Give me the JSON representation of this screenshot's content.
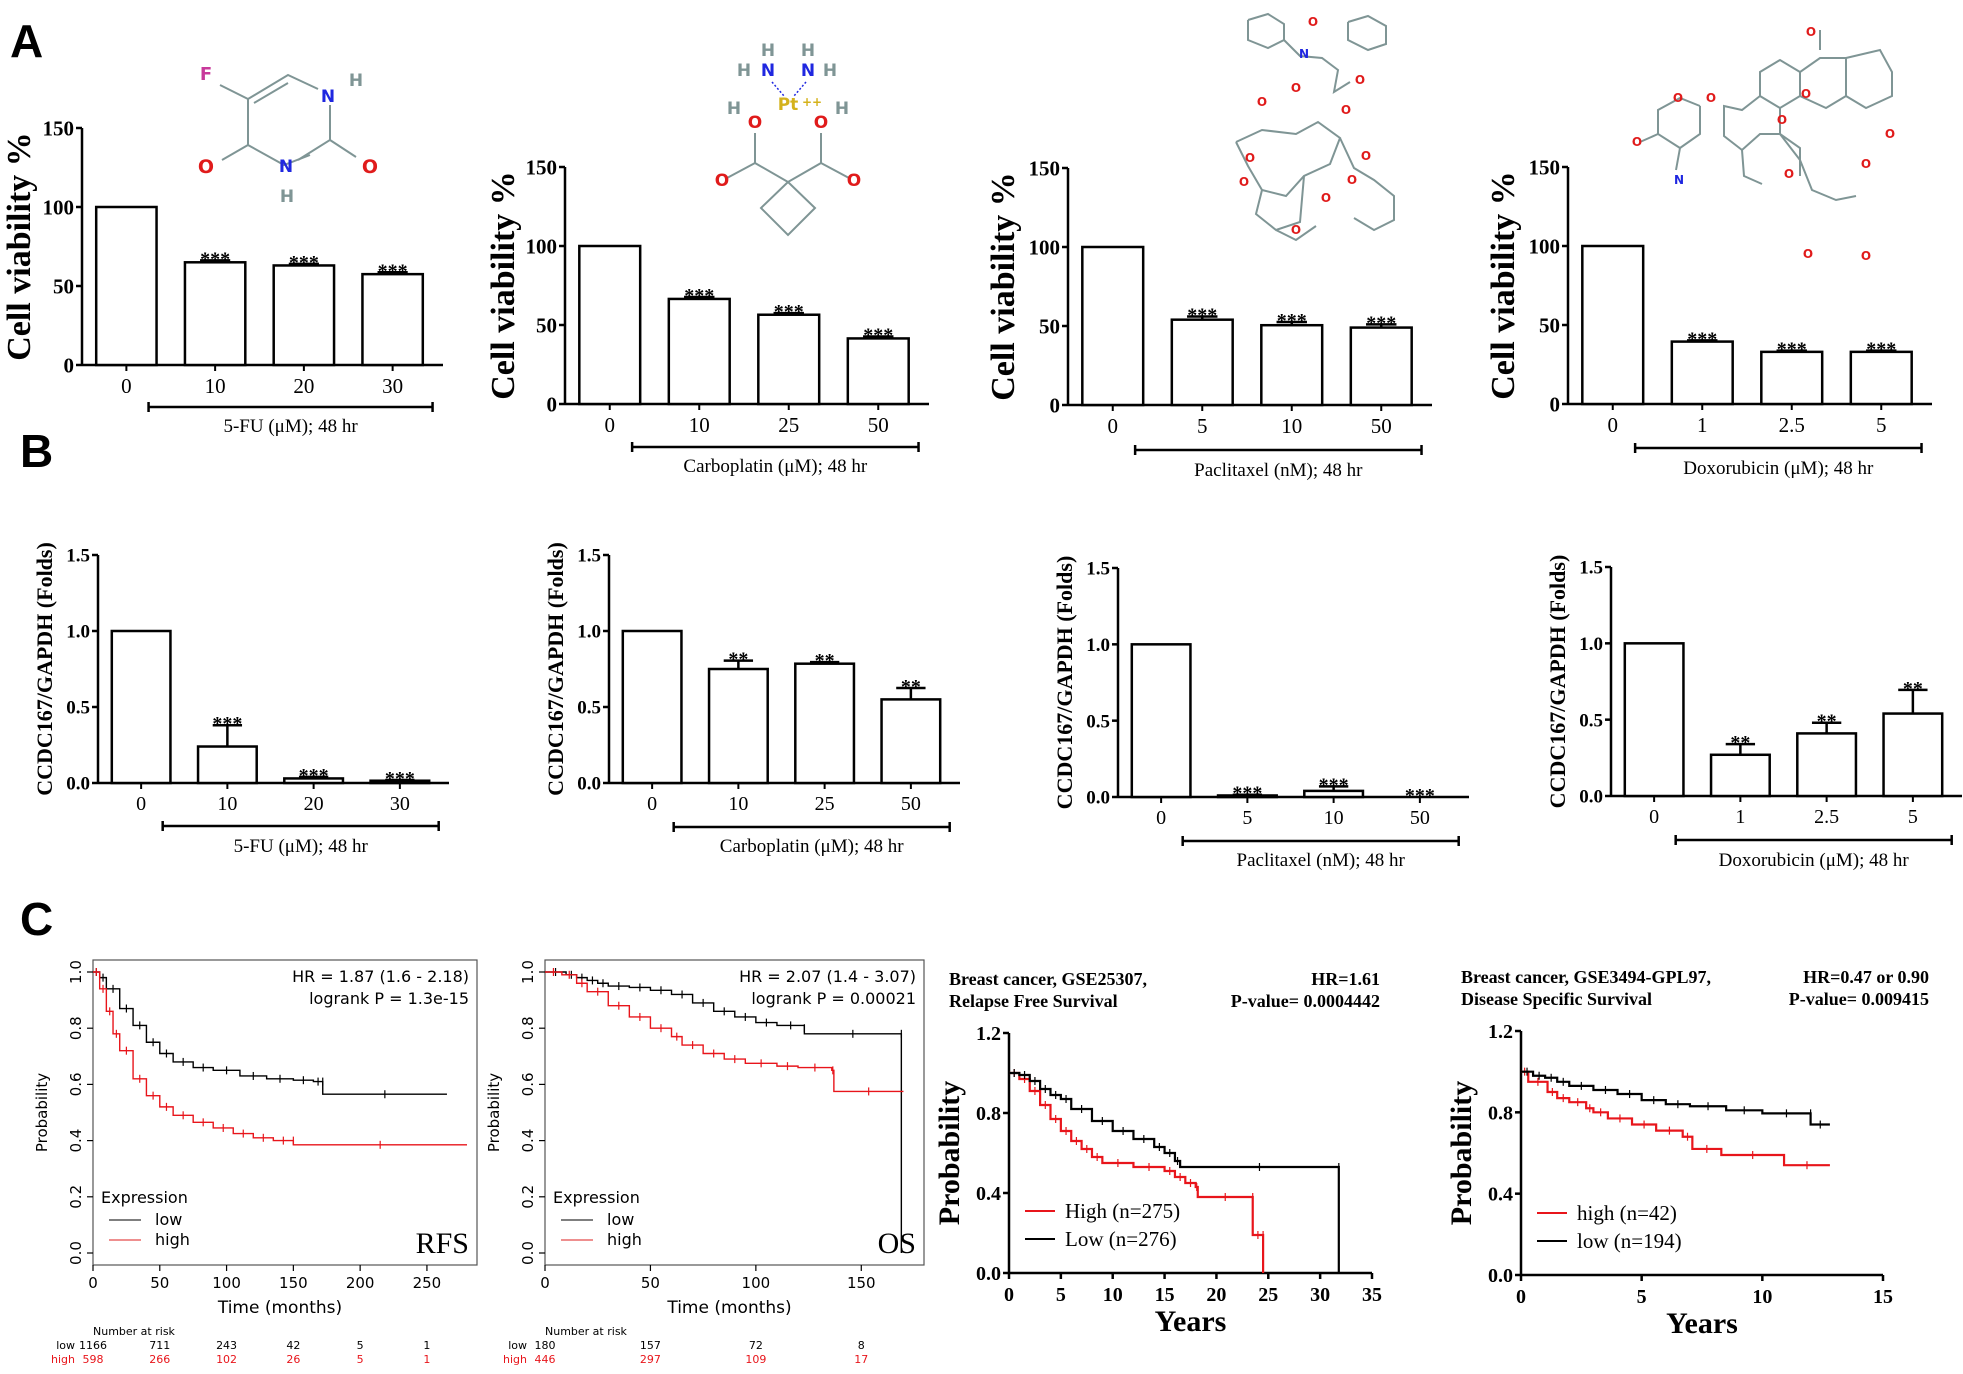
{
  "panel_labels": [
    "A",
    "B",
    "C"
  ],
  "chart_data": [
    {
      "id": "A1",
      "type": "bar",
      "panel": "A",
      "ylabel": "Cell viability %",
      "ylim": [
        0,
        150
      ],
      "yticks": [
        "0",
        "50",
        "100",
        "150"
      ],
      "categories": [
        "0",
        "10",
        "20",
        "30"
      ],
      "values": [
        100,
        65,
        63,
        57.5
      ],
      "errors": [
        0,
        1.2,
        1.0,
        1.2
      ],
      "significance": [
        "",
        "***",
        "***",
        "***"
      ],
      "group_label": "5-FU (μM); 48 hr",
      "structure": "5-fluorouracil",
      "structure_atoms": [
        "F",
        "N",
        "H",
        "N",
        "H",
        "O",
        "O"
      ]
    },
    {
      "id": "A2",
      "type": "bar",
      "panel": "A",
      "ylabel": "Cell viability %",
      "ylim": [
        0,
        150
      ],
      "yticks": [
        "0",
        "50",
        "100",
        "150"
      ],
      "categories": [
        "0",
        "10",
        "25",
        "50"
      ],
      "values": [
        100,
        66.5,
        56.5,
        41.5
      ],
      "errors": [
        0,
        1.2,
        1.0,
        1.2
      ],
      "significance": [
        "",
        "***",
        "***",
        "***"
      ],
      "group_label": "Carboplatin (μM); 48 hr",
      "structure": "carboplatin",
      "structure_atoms": [
        "H",
        "N",
        "H",
        "H",
        "N",
        "H",
        "Pt",
        "++",
        "H",
        "O",
        "O",
        "H",
        "O",
        "O"
      ]
    },
    {
      "id": "A3",
      "type": "bar",
      "panel": "A",
      "ylabel": "Cell viability %",
      "ylim": [
        0,
        150
      ],
      "yticks": [
        "0",
        "50",
        "100",
        "150"
      ],
      "categories": [
        "0",
        "5",
        "10",
        "50"
      ],
      "values": [
        100,
        54,
        50.5,
        49
      ],
      "errors": [
        0,
        2.0,
        2.0,
        2.0
      ],
      "significance": [
        "",
        "***",
        "***",
        "***"
      ],
      "group_label": "Paclitaxel (nM); 48 hr",
      "structure": "paclitaxel"
    },
    {
      "id": "A4",
      "type": "bar",
      "panel": "A",
      "ylabel": "Cell viability %",
      "ylim": [
        0,
        150
      ],
      "yticks": [
        "0",
        "50",
        "100",
        "150"
      ],
      "categories": [
        "0",
        "1",
        "2.5",
        "5"
      ],
      "values": [
        100,
        39.5,
        33,
        33
      ],
      "errors": [
        0,
        0.8,
        0.8,
        0.8
      ],
      "significance": [
        "",
        "***",
        "***",
        "***"
      ],
      "group_label": "Doxorubicin (μM); 48 hr",
      "structure": "doxorubicin"
    },
    {
      "id": "B1",
      "type": "bar",
      "panel": "B",
      "ylabel": "CCDC167/GAPDH (Folds)",
      "ylim": [
        0,
        1.5
      ],
      "yticks": [
        "0.0",
        "0.5",
        "1.0",
        "1.5"
      ],
      "categories": [
        "0",
        "10",
        "20",
        "30"
      ],
      "values": [
        1.0,
        0.24,
        0.03,
        0.015
      ],
      "errors": [
        0,
        0.14,
        0.01,
        0.005
      ],
      "significance": [
        "",
        "***",
        "***",
        "***"
      ],
      "group_label": "5-FU (μM); 48 hr"
    },
    {
      "id": "B2",
      "type": "bar",
      "panel": "B",
      "ylabel": "CCDC167/GAPDH (Folds)",
      "ylim": [
        0,
        1.5
      ],
      "yticks": [
        "0.0",
        "0.5",
        "1.0",
        "1.5"
      ],
      "categories": [
        "0",
        "10",
        "25",
        "50"
      ],
      "values": [
        1.0,
        0.75,
        0.785,
        0.55
      ],
      "errors": [
        0,
        0.055,
        0.01,
        0.075
      ],
      "significance": [
        "",
        "**",
        "**",
        "**"
      ],
      "group_label": "Carboplatin (μM); 48 hr"
    },
    {
      "id": "B3",
      "type": "bar",
      "panel": "B",
      "ylabel": "CCDC167/GAPDH (Folds)",
      "ylim": [
        0,
        1.5
      ],
      "yticks": [
        "0.0",
        "0.5",
        "1.0",
        "1.5"
      ],
      "categories": [
        "0",
        "5",
        "10",
        "50"
      ],
      "values": [
        1.0,
        0.01,
        0.04,
        0.0
      ],
      "errors": [
        0,
        0.005,
        0.03,
        0
      ],
      "significance": [
        "",
        "***",
        "***",
        "***"
      ],
      "group_label": "Paclitaxel (nM); 48 hr"
    },
    {
      "id": "B4",
      "type": "bar",
      "panel": "B",
      "ylabel": "CCDC167/GAPDH (Folds)",
      "ylim": [
        0,
        1.5
      ],
      "yticks": [
        "0.0",
        "0.5",
        "1.0",
        "1.5"
      ],
      "categories": [
        "0",
        "1",
        "2.5",
        "5"
      ],
      "values": [
        1.0,
        0.27,
        0.41,
        0.54
      ],
      "errors": [
        0,
        0.07,
        0.07,
        0.155
      ],
      "significance": [
        "",
        "**",
        "**",
        "**"
      ],
      "group_label": "Doxorubicin (μM); 48 hr"
    },
    {
      "id": "C1",
      "type": "line",
      "subtype": "kaplan-meier",
      "panel": "C",
      "xlabel": "Time (months)",
      "ylabel": "Probability",
      "xlim": [
        0,
        280
      ],
      "ylim": [
        0,
        1.0
      ],
      "xticks": [
        "0",
        "50",
        "100",
        "150",
        "200",
        "250"
      ],
      "yticks": [
        "0.0",
        "0.2",
        "0.4",
        "0.6",
        "0.8",
        "1.0"
      ],
      "annotation": [
        "HR = 1.87 (1.6 - 2.18)",
        "logrank P = 1.3e-15"
      ],
      "corner_label": "RFS",
      "legend_title": "Expression",
      "legend": [
        "low",
        "high"
      ],
      "legend_position": "bottom-left",
      "series": [
        {
          "name": "low",
          "color": "#000000",
          "x": [
            0,
            5,
            10,
            20,
            30,
            40,
            50,
            60,
            75,
            90,
            110,
            130,
            150,
            165,
            172,
            172,
            265
          ],
          "y": [
            1.0,
            0.98,
            0.94,
            0.87,
            0.81,
            0.75,
            0.71,
            0.68,
            0.66,
            0.65,
            0.63,
            0.62,
            0.615,
            0.61,
            0.61,
            0.565,
            0.565
          ]
        },
        {
          "name": "high",
          "color": "#e8151b",
          "x": [
            0,
            5,
            10,
            15,
            20,
            30,
            40,
            50,
            60,
            75,
            90,
            105,
            120,
            135,
            150,
            150,
            280
          ],
          "y": [
            1.0,
            0.94,
            0.86,
            0.78,
            0.72,
            0.62,
            0.56,
            0.52,
            0.49,
            0.465,
            0.445,
            0.425,
            0.41,
            0.4,
            0.4,
            0.385,
            0.385
          ]
        }
      ],
      "risk_table": {
        "title": "Number at risk",
        "times": [
          "0",
          "50",
          "100",
          "150",
          "200",
          "250"
        ],
        "rows": [
          {
            "label": "low",
            "values": [
              "1166",
              "711",
              "243",
              "42",
              "5",
              "1"
            ]
          },
          {
            "label": "high",
            "values": [
              "598",
              "266",
              "102",
              "26",
              "5",
              "1"
            ]
          }
        ]
      }
    },
    {
      "id": "C2",
      "type": "line",
      "subtype": "kaplan-meier",
      "panel": "C",
      "xlabel": "Time (months)",
      "ylabel": "Probability",
      "xlim": [
        0,
        175
      ],
      "ylim": [
        0,
        1.0
      ],
      "xticks": [
        "0",
        "50",
        "100",
        "150"
      ],
      "yticks": [
        "0.0",
        "0.2",
        "0.4",
        "0.6",
        "0.8",
        "1.0"
      ],
      "annotation": [
        "HR = 2.07 (1.4 - 3.07)",
        "logrank P = 0.00021"
      ],
      "corner_label": "OS",
      "legend_title": "Expression",
      "legend": [
        "low",
        "high"
      ],
      "legend_position": "bottom-left",
      "series": [
        {
          "name": "low",
          "color": "#000000",
          "x": [
            0,
            10,
            15,
            20,
            25,
            30,
            40,
            50,
            60,
            70,
            80,
            90,
            100,
            110,
            123,
            123,
            169,
            169
          ],
          "y": [
            1.0,
            0.99,
            0.98,
            0.97,
            0.96,
            0.95,
            0.945,
            0.935,
            0.92,
            0.89,
            0.86,
            0.84,
            0.82,
            0.81,
            0.8,
            0.78,
            0.78,
            0.0
          ]
        },
        {
          "name": "high",
          "color": "#e8151b",
          "x": [
            0,
            8,
            15,
            20,
            30,
            40,
            50,
            60,
            65,
            75,
            85,
            95,
            110,
            120,
            136,
            137,
            170
          ],
          "y": [
            1.0,
            0.99,
            0.96,
            0.93,
            0.88,
            0.84,
            0.8,
            0.77,
            0.74,
            0.71,
            0.69,
            0.675,
            0.665,
            0.66,
            0.65,
            0.575,
            0.575
          ]
        }
      ],
      "risk_table": {
        "title": "Number at risk",
        "times": [
          "0",
          "50",
          "100",
          "150"
        ],
        "rows": [
          {
            "label": "low",
            "values": [
              "180",
              "157",
              "72",
              "8"
            ]
          },
          {
            "label": "high",
            "values": [
              "446",
              "297",
              "109",
              "17"
            ]
          }
        ]
      }
    },
    {
      "id": "C3",
      "type": "line",
      "subtype": "kaplan-meier",
      "panel": "C",
      "title_left": [
        "Breast cancer,   GSE25307,",
        "Relapse Free Survival"
      ],
      "title_right": [
        "HR=1.61",
        "P-value=  0.0004442"
      ],
      "xlabel": "Years",
      "ylabel": "Probability",
      "xlim": [
        0,
        35
      ],
      "ylim": [
        0,
        1.2
      ],
      "xticks": [
        "0",
        "5",
        "10",
        "15",
        "20",
        "25",
        "30",
        "35"
      ],
      "yticks": [
        "0.0",
        "0.4",
        "0.8",
        "1.2"
      ],
      "legend": [
        "High (n=275)",
        "Low (n=276)"
      ],
      "legend_position": "bottom-left",
      "series": [
        {
          "name": "High (n=275)",
          "color": "#e8151b",
          "x": [
            0,
            1,
            2,
            3,
            4,
            5,
            6,
            7,
            8,
            9,
            12,
            15,
            16,
            17,
            18,
            18.2,
            23.5,
            23.5,
            24.5,
            24.5
          ],
          "y": [
            1.0,
            0.97,
            0.91,
            0.84,
            0.77,
            0.71,
            0.66,
            0.62,
            0.58,
            0.55,
            0.53,
            0.51,
            0.48,
            0.45,
            0.43,
            0.38,
            0.38,
            0.19,
            0.19,
            0.0
          ]
        },
        {
          "name": "Low (n=276)",
          "color": "#000000",
          "x": [
            0,
            1,
            2,
            3,
            4,
            5,
            6,
            8,
            10,
            12,
            14,
            15,
            16,
            16.5,
            31.8,
            31.8
          ],
          "y": [
            1.0,
            0.99,
            0.96,
            0.92,
            0.89,
            0.87,
            0.82,
            0.76,
            0.71,
            0.67,
            0.63,
            0.6,
            0.56,
            0.53,
            0.53,
            0.0
          ]
        }
      ]
    },
    {
      "id": "C4",
      "type": "line",
      "subtype": "kaplan-meier",
      "panel": "C",
      "title_left": [
        "Breast cancer, GSE3494-GPL97,",
        "Disease Specific Survival"
      ],
      "title_right": [
        "HR=0.47 or 0.90",
        "P-value=  0.009415"
      ],
      "xlabel": "Years",
      "ylabel": "Probability",
      "xlim": [
        0,
        15
      ],
      "ylim": [
        0,
        1.2
      ],
      "xticks": [
        "0",
        "5",
        "10",
        "15"
      ],
      "yticks": [
        "0.0",
        "0.4",
        "0.8",
        "1.2"
      ],
      "legend": [
        "high (n=42)",
        "low (n=194)"
      ],
      "legend_position": "bottom-left",
      "series": [
        {
          "name": "high (n=42)",
          "color": "#e8151b",
          "x": [
            0,
            0.3,
            1.1,
            1.5,
            2.0,
            2.7,
            3.0,
            3.6,
            4.6,
            5.6,
            6.7,
            7.1,
            8.3,
            10.9,
            12.8
          ],
          "y": [
            1.0,
            0.95,
            0.9,
            0.87,
            0.85,
            0.82,
            0.8,
            0.77,
            0.74,
            0.71,
            0.68,
            0.62,
            0.59,
            0.54,
            0.54
          ]
        },
        {
          "name": "low (n=194)",
          "color": "#000000",
          "x": [
            0,
            0.5,
            1.0,
            1.5,
            2.0,
            3.0,
            4.0,
            5.0,
            6.0,
            7.0,
            8.5,
            10.0,
            12.0,
            12.0,
            12.8
          ],
          "y": [
            1.0,
            0.98,
            0.97,
            0.95,
            0.93,
            0.91,
            0.89,
            0.86,
            0.84,
            0.83,
            0.81,
            0.795,
            0.795,
            0.74,
            0.74
          ]
        }
      ]
    }
  ]
}
